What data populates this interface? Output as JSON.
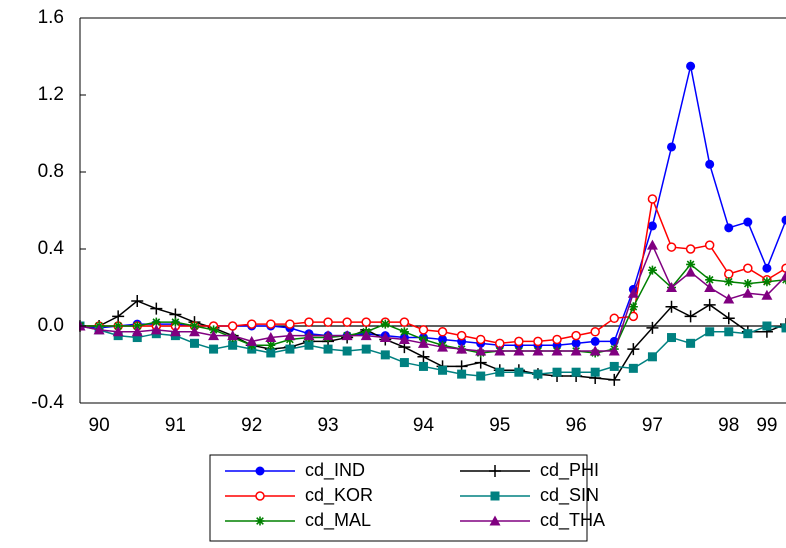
{
  "chart_data": {
    "type": "line",
    "categories": [
      null,
      "90",
      null,
      null,
      null,
      "91",
      null,
      null,
      null,
      "92",
      null,
      null,
      null,
      "93",
      null,
      null,
      null,
      null,
      "94",
      null,
      null,
      null,
      "95",
      null,
      null,
      null,
      "96",
      null,
      null,
      null,
      "97",
      null,
      null,
      null,
      "98",
      null,
      "99",
      null
    ],
    "ylim": [
      -0.4,
      1.6
    ],
    "yticks": [
      -0.4,
      {
        "value": 0,
        "label": "0.0"
      },
      0.4,
      0.8,
      1.2,
      1.6
    ],
    "zero_line": true,
    "series": [
      {
        "name": "cd_IND",
        "color": "#0000ff",
        "marker": "filled-circle",
        "values": [
          0,
          -0.01,
          0,
          0.01,
          0.01,
          0.01,
          0,
          0,
          0,
          0,
          0,
          -0.01,
          -0.04,
          -0.05,
          -0.05,
          -0.04,
          -0.05,
          -0.06,
          -0.06,
          -0.07,
          -0.08,
          -0.09,
          -0.1,
          -0.1,
          -0.1,
          -0.1,
          -0.09,
          -0.08,
          -0.08,
          0.19,
          0.52,
          0.93,
          1.35,
          0.84,
          0.51,
          0.54,
          0.3,
          0.55
        ]
      },
      {
        "name": "cd_PHI",
        "color": "#000000",
        "marker": "plus",
        "values": [
          0,
          0,
          0.05,
          0.13,
          0.09,
          0.06,
          0.02,
          -0.01,
          -0.05,
          -0.1,
          -0.12,
          -0.11,
          -0.08,
          -0.08,
          -0.06,
          -0.02,
          -0.07,
          -0.11,
          -0.16,
          -0.21,
          -0.21,
          -0.19,
          -0.23,
          -0.23,
          -0.25,
          -0.26,
          -0.26,
          -0.27,
          -0.28,
          -0.12,
          -0.01,
          0.1,
          0.05,
          0.11,
          0.04,
          -0.03,
          -0.03,
          0.01
        ]
      },
      {
        "name": "cd_KOR",
        "color": "#ff0000",
        "marker": "open-circle",
        "values": [
          0,
          0,
          0,
          0,
          0,
          0,
          0,
          0,
          0,
          0.01,
          0.01,
          0.01,
          0.02,
          0.02,
          0.02,
          0.02,
          0.02,
          0.02,
          -0.02,
          -0.03,
          -0.05,
          -0.07,
          -0.09,
          -0.08,
          -0.08,
          -0.07,
          -0.05,
          -0.03,
          0.04,
          0.05,
          0.66,
          0.41,
          0.4,
          0.42,
          0.27,
          0.3,
          0.24,
          0.3
        ]
      },
      {
        "name": "cd_SIN",
        "color": "#008080",
        "marker": "filled-square",
        "values": [
          0,
          -0.02,
          -0.05,
          -0.06,
          -0.04,
          -0.05,
          -0.09,
          -0.12,
          -0.1,
          -0.12,
          -0.14,
          -0.12,
          -0.1,
          -0.12,
          -0.13,
          -0.12,
          -0.15,
          -0.19,
          -0.21,
          -0.23,
          -0.25,
          -0.26,
          -0.24,
          -0.24,
          -0.25,
          -0.24,
          -0.24,
          -0.24,
          -0.21,
          -0.22,
          -0.16,
          -0.06,
          -0.09,
          -0.03,
          -0.03,
          -0.04,
          0,
          -0.01
        ]
      },
      {
        "name": "cd_MAL",
        "color": "#008000",
        "marker": "asterisk",
        "values": [
          0,
          0,
          0,
          0,
          0.02,
          0.02,
          0,
          -0.02,
          -0.06,
          -0.1,
          -0.1,
          -0.07,
          -0.06,
          -0.06,
          -0.05,
          -0.03,
          0.01,
          -0.03,
          -0.07,
          -0.1,
          -0.12,
          -0.14,
          -0.13,
          -0.13,
          -0.13,
          -0.13,
          -0.13,
          -0.14,
          -0.12,
          0.1,
          0.29,
          0.2,
          0.32,
          0.24,
          0.23,
          0.22,
          0.23,
          0.24
        ]
      },
      {
        "name": "cd_THA",
        "color": "#800080",
        "marker": "triangle",
        "values": [
          0,
          -0.02,
          -0.03,
          -0.03,
          -0.02,
          -0.03,
          -0.03,
          -0.05,
          -0.05,
          -0.08,
          -0.06,
          -0.05,
          -0.05,
          -0.05,
          -0.05,
          -0.05,
          -0.06,
          -0.07,
          -0.09,
          -0.11,
          -0.12,
          -0.13,
          -0.13,
          -0.13,
          -0.13,
          -0.13,
          -0.13,
          -0.13,
          -0.13,
          0.17,
          0.42,
          0.2,
          0.28,
          0.2,
          0.14,
          0.17,
          0.16,
          0.26
        ]
      }
    ]
  }
}
